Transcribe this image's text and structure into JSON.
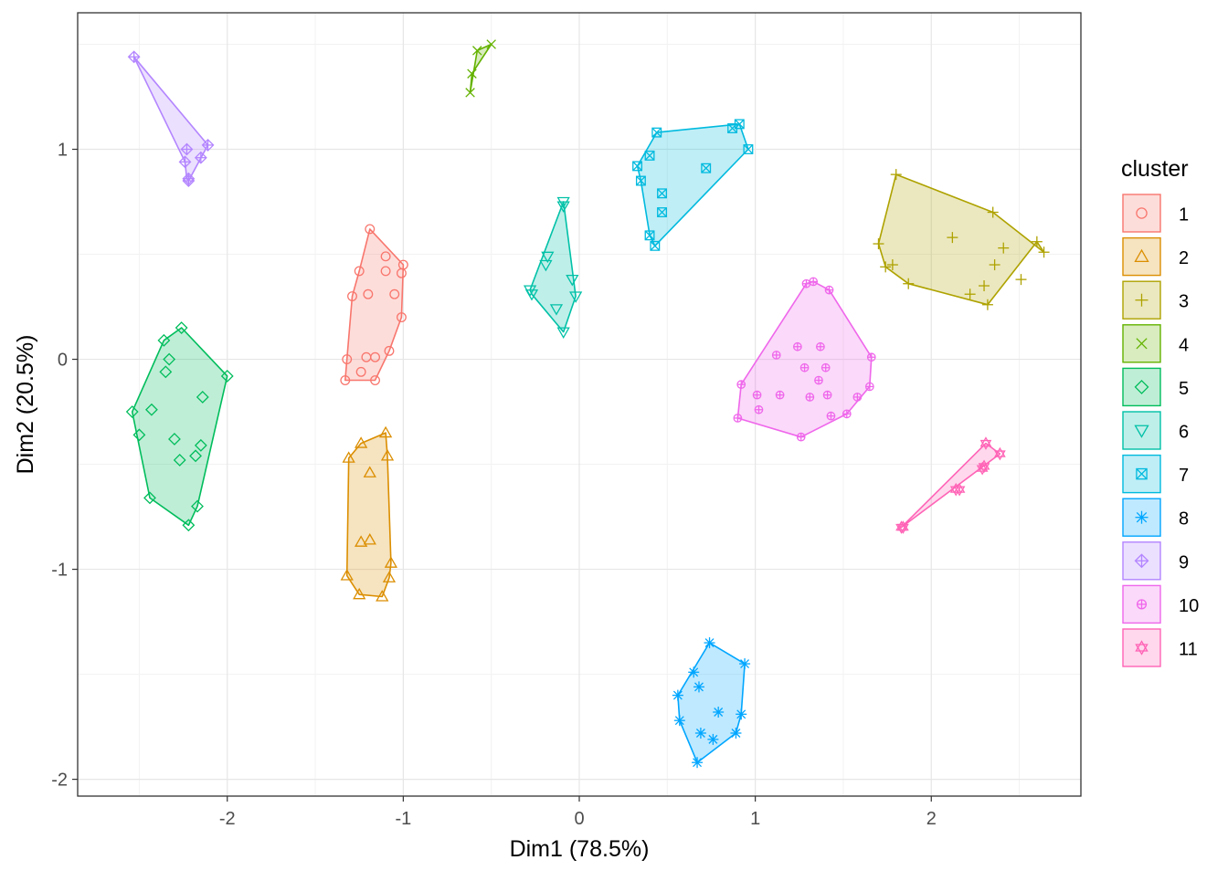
{
  "chart_data": {
    "type": "scatter",
    "title": "",
    "xlabel": "Dim1 (78.5%)",
    "ylabel": "Dim2 (20.5%)",
    "xlim": [
      -2.85,
      2.85
    ],
    "ylim": [
      -2.08,
      1.65
    ],
    "x_ticks": [
      -2,
      -1,
      0,
      1,
      2
    ],
    "y_ticks": [
      -2,
      -1,
      0,
      1
    ],
    "grid": true,
    "legend": {
      "title": "cluster",
      "position": "right"
    },
    "series": [
      {
        "name": "1",
        "color": "#F8766D",
        "marker": "circle",
        "hull": [
          [
            -1.19,
            0.62
          ],
          [
            -1.0,
            0.45
          ],
          [
            -1.01,
            0.2
          ],
          [
            -1.08,
            0.04
          ],
          [
            -1.16,
            -0.1
          ],
          [
            -1.33,
            -0.1
          ],
          [
            -1.32,
            0.0
          ],
          [
            -1.29,
            0.3
          ],
          [
            -1.25,
            0.42
          ]
        ],
        "points": [
          [
            -1.19,
            0.62
          ],
          [
            -1.0,
            0.45
          ],
          [
            -1.01,
            0.41
          ],
          [
            -1.1,
            0.49
          ],
          [
            -1.1,
            0.42
          ],
          [
            -1.25,
            0.42
          ],
          [
            -1.05,
            0.31
          ],
          [
            -1.2,
            0.31
          ],
          [
            -1.29,
            0.3
          ],
          [
            -1.16,
            0.01
          ],
          [
            -1.01,
            0.2
          ],
          [
            -1.08,
            0.04
          ],
          [
            -1.16,
            -0.1
          ],
          [
            -1.33,
            -0.1
          ],
          [
            -1.32,
            0.0
          ],
          [
            -1.24,
            -0.06
          ],
          [
            -1.21,
            0.01
          ]
        ]
      },
      {
        "name": "2",
        "color": "#DB8E00",
        "marker": "triangle",
        "hull": [
          [
            -1.1,
            -0.35
          ],
          [
            -1.09,
            -0.46
          ],
          [
            -1.07,
            -0.97
          ],
          [
            -1.08,
            -1.04
          ],
          [
            -1.12,
            -1.13
          ],
          [
            -1.25,
            -1.12
          ],
          [
            -1.32,
            -1.03
          ],
          [
            -1.31,
            -0.47
          ],
          [
            -1.24,
            -0.4
          ]
        ],
        "points": [
          [
            -1.1,
            -0.35
          ],
          [
            -1.24,
            -0.4
          ],
          [
            -1.31,
            -0.47
          ],
          [
            -1.09,
            -0.46
          ],
          [
            -1.19,
            -0.54
          ],
          [
            -1.24,
            -0.87
          ],
          [
            -1.19,
            -0.86
          ],
          [
            -1.07,
            -0.97
          ],
          [
            -1.08,
            -1.04
          ],
          [
            -1.12,
            -1.13
          ],
          [
            -1.25,
            -1.12
          ],
          [
            -1.32,
            -1.03
          ]
        ]
      },
      {
        "name": "3",
        "color": "#AEA200",
        "marker": "plus",
        "hull": [
          [
            1.8,
            0.88
          ],
          [
            2.35,
            0.7
          ],
          [
            2.64,
            0.51
          ],
          [
            2.6,
            0.56
          ],
          [
            2.32,
            0.26
          ],
          [
            1.87,
            0.36
          ],
          [
            1.74,
            0.44
          ],
          [
            1.7,
            0.55
          ]
        ],
        "points": [
          [
            1.8,
            0.88
          ],
          [
            2.35,
            0.7
          ],
          [
            2.12,
            0.58
          ],
          [
            2.6,
            0.56
          ],
          [
            2.64,
            0.51
          ],
          [
            2.41,
            0.53
          ],
          [
            2.36,
            0.45
          ],
          [
            1.7,
            0.55
          ],
          [
            1.74,
            0.44
          ],
          [
            1.78,
            0.45
          ],
          [
            1.87,
            0.36
          ],
          [
            2.3,
            0.35
          ],
          [
            2.22,
            0.31
          ],
          [
            2.32,
            0.26
          ],
          [
            2.51,
            0.38
          ]
        ]
      },
      {
        "name": "4",
        "color": "#64B200",
        "marker": "cross",
        "hull": [
          [
            -0.5,
            1.5
          ],
          [
            -0.58,
            1.47
          ],
          [
            -0.62,
            1.27
          ],
          [
            -0.61,
            1.36
          ]
        ],
        "points": [
          [
            -0.5,
            1.5
          ],
          [
            -0.58,
            1.47
          ],
          [
            -0.61,
            1.36
          ],
          [
            -0.62,
            1.27
          ]
        ]
      },
      {
        "name": "5",
        "color": "#00BD5C",
        "marker": "diamond",
        "hull": [
          [
            -2.26,
            0.15
          ],
          [
            -2.0,
            -0.08
          ],
          [
            -2.17,
            -0.7
          ],
          [
            -2.22,
            -0.79
          ],
          [
            -2.44,
            -0.66
          ],
          [
            -2.54,
            -0.25
          ],
          [
            -2.36,
            0.09
          ]
        ],
        "points": [
          [
            -2.26,
            0.15
          ],
          [
            -2.36,
            0.09
          ],
          [
            -2.33,
            0.0
          ],
          [
            -2.35,
            -0.06
          ],
          [
            -2.0,
            -0.08
          ],
          [
            -2.14,
            -0.18
          ],
          [
            -2.43,
            -0.24
          ],
          [
            -2.54,
            -0.25
          ],
          [
            -2.5,
            -0.36
          ],
          [
            -2.3,
            -0.38
          ],
          [
            -2.15,
            -0.41
          ],
          [
            -2.18,
            -0.46
          ],
          [
            -2.27,
            -0.48
          ],
          [
            -2.44,
            -0.66
          ],
          [
            -2.17,
            -0.7
          ],
          [
            -2.22,
            -0.79
          ]
        ]
      },
      {
        "name": "6",
        "color": "#00C1A7",
        "marker": "triangle-down",
        "hull": [
          [
            -0.09,
            0.75
          ],
          [
            -0.02,
            0.3
          ],
          [
            -0.09,
            0.13
          ],
          [
            -0.27,
            0.31
          ],
          [
            -0.28,
            0.33
          ]
        ],
        "points": [
          [
            -0.09,
            0.75
          ],
          [
            -0.09,
            0.73
          ],
          [
            -0.18,
            0.49
          ],
          [
            -0.19,
            0.45
          ],
          [
            -0.04,
            0.38
          ],
          [
            -0.28,
            0.33
          ],
          [
            -0.27,
            0.31
          ],
          [
            -0.02,
            0.3
          ],
          [
            -0.13,
            0.24
          ],
          [
            -0.09,
            0.13
          ]
        ]
      },
      {
        "name": "7",
        "color": "#00BADE",
        "marker": "square-cross",
        "hull": [
          [
            0.44,
            1.08
          ],
          [
            0.91,
            1.12
          ],
          [
            0.96,
            1.0
          ],
          [
            0.43,
            0.54
          ],
          [
            0.4,
            0.59
          ],
          [
            0.35,
            0.85
          ],
          [
            0.33,
            0.92
          ]
        ],
        "points": [
          [
            0.44,
            1.08
          ],
          [
            0.91,
            1.12
          ],
          [
            0.87,
            1.1
          ],
          [
            0.96,
            1.0
          ],
          [
            0.4,
            0.97
          ],
          [
            0.33,
            0.92
          ],
          [
            0.72,
            0.91
          ],
          [
            0.35,
            0.85
          ],
          [
            0.47,
            0.79
          ],
          [
            0.47,
            0.7
          ],
          [
            0.4,
            0.59
          ],
          [
            0.43,
            0.54
          ]
        ]
      },
      {
        "name": "8",
        "color": "#00A6FF",
        "marker": "asterisk",
        "hull": [
          [
            0.74,
            -1.35
          ],
          [
            0.94,
            -1.45
          ],
          [
            0.92,
            -1.69
          ],
          [
            0.89,
            -1.78
          ],
          [
            0.67,
            -1.92
          ],
          [
            0.57,
            -1.72
          ],
          [
            0.56,
            -1.6
          ]
        ],
        "points": [
          [
            0.74,
            -1.35
          ],
          [
            0.94,
            -1.45
          ],
          [
            0.65,
            -1.49
          ],
          [
            0.68,
            -1.56
          ],
          [
            0.56,
            -1.6
          ],
          [
            0.79,
            -1.68
          ],
          [
            0.92,
            -1.69
          ],
          [
            0.57,
            -1.72
          ],
          [
            0.69,
            -1.78
          ],
          [
            0.89,
            -1.78
          ],
          [
            0.76,
            -1.81
          ],
          [
            0.67,
            -1.92
          ]
        ]
      },
      {
        "name": "9",
        "color": "#B385FF",
        "marker": "circle-plus",
        "hull": [
          [
            -2.53,
            1.44
          ],
          [
            -2.11,
            1.02
          ],
          [
            -2.22,
            0.85
          ],
          [
            -2.23,
            0.86
          ],
          [
            -2.24,
            0.94
          ]
        ],
        "points": [
          [
            -2.53,
            1.44
          ],
          [
            -2.11,
            1.02
          ],
          [
            -2.23,
            1.0
          ],
          [
            -2.15,
            0.96
          ],
          [
            -2.24,
            0.94
          ],
          [
            -2.22,
            0.86
          ],
          [
            -2.22,
            0.85
          ]
        ]
      },
      {
        "name": "10",
        "color": "#EF67EB",
        "marker": "circle-plus-small",
        "hull": [
          [
            1.29,
            0.36
          ],
          [
            1.33,
            0.37
          ],
          [
            1.42,
            0.33
          ],
          [
            1.66,
            0.01
          ],
          [
            1.65,
            -0.13
          ],
          [
            1.52,
            -0.26
          ],
          [
            1.26,
            -0.37
          ],
          [
            0.9,
            -0.28
          ],
          [
            0.92,
            -0.12
          ]
        ],
        "points": [
          [
            1.29,
            0.36
          ],
          [
            1.33,
            0.37
          ],
          [
            1.42,
            0.33
          ],
          [
            1.66,
            0.01
          ],
          [
            1.65,
            -0.13
          ],
          [
            1.52,
            -0.26
          ],
          [
            1.26,
            -0.37
          ],
          [
            0.9,
            -0.28
          ],
          [
            0.92,
            -0.12
          ],
          [
            1.12,
            0.02
          ],
          [
            1.24,
            0.06
          ],
          [
            1.37,
            0.06
          ],
          [
            1.28,
            -0.04
          ],
          [
            1.4,
            -0.04
          ],
          [
            1.14,
            -0.17
          ],
          [
            1.36,
            -0.1
          ],
          [
            1.31,
            -0.18
          ],
          [
            1.01,
            -0.17
          ],
          [
            1.02,
            -0.24
          ],
          [
            1.58,
            -0.18
          ],
          [
            1.41,
            -0.17
          ],
          [
            1.43,
            -0.27
          ]
        ]
      },
      {
        "name": "11",
        "color": "#FF63B6",
        "marker": "star-of-david",
        "hull": [
          [
            2.31,
            -0.4
          ],
          [
            2.39,
            -0.45
          ],
          [
            1.83,
            -0.8
          ]
        ],
        "points": [
          [
            2.31,
            -0.4
          ],
          [
            2.39,
            -0.45
          ],
          [
            2.29,
            -0.52
          ],
          [
            2.3,
            -0.51
          ],
          [
            2.16,
            -0.62
          ],
          [
            2.14,
            -0.62
          ],
          [
            1.83,
            -0.8
          ],
          [
            1.84,
            -0.8
          ]
        ]
      }
    ]
  }
}
